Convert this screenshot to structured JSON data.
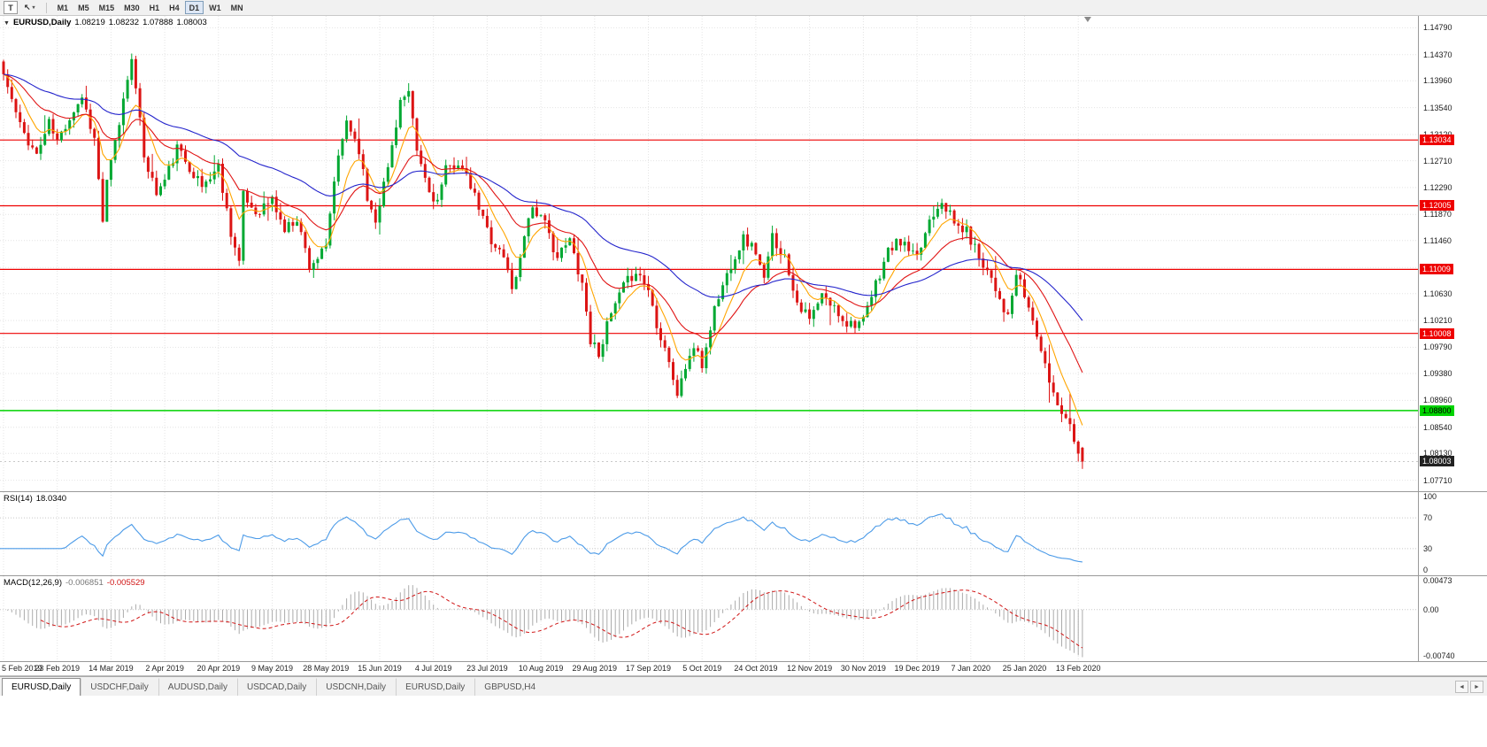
{
  "toolbar": {
    "text_tool": "T",
    "cursor_icon": "↖",
    "dropdown_caret": "▾",
    "timeframes": [
      "M1",
      "M5",
      "M15",
      "M30",
      "H1",
      "H4",
      "D1",
      "W1",
      "MN"
    ],
    "active_timeframe": "D1"
  },
  "chart_header": {
    "collapse_icon": "▼",
    "symbol": "EURUSD,Daily",
    "open": "1.08219",
    "high": "1.08232",
    "low": "1.07888",
    "close": "1.08003"
  },
  "rsi": {
    "label": "RSI(14)",
    "value": "18.0340",
    "axis_labels": [
      "100",
      "70",
      "30",
      "0"
    ],
    "levels_dashed": [
      70,
      30
    ]
  },
  "macd": {
    "label": "MACD(12,26,9)",
    "main_value": "-0.006851",
    "signal_value": "-0.005529",
    "axis_labels": [
      "0.00473",
      "0.00",
      "-0.00740"
    ]
  },
  "price_axis": {
    "ticks": [
      "1.14790",
      "1.14370",
      "1.13960",
      "1.13540",
      "1.13120",
      "1.12710",
      "1.12290",
      "1.11870",
      "1.11460",
      "1.11040",
      "1.10630",
      "1.10210",
      "1.09790",
      "1.09380",
      "1.08960",
      "1.08540",
      "1.08130",
      "1.07710"
    ]
  },
  "levels": {
    "resistance": [
      "1.13034",
      "1.12005",
      "1.11009",
      "1.10008"
    ],
    "support": "1.08800",
    "current": "1.08003"
  },
  "tabs": {
    "items": [
      "EURUSD,Daily",
      "USDCHF,Daily",
      "AUDUSD,Daily",
      "USDCAD,Daily",
      "USDCNH,Daily",
      "EURUSD,Daily",
      "GBPUSD,H4"
    ],
    "active": 0,
    "scroll_left": "◄",
    "scroll_right": "►"
  },
  "colors": {
    "candle_up": "#00A832",
    "candle_down": "#DC1414",
    "ma_fast": "#FFA500",
    "ma_mid": "#E01414",
    "ma_slow": "#2424CC",
    "rsi_line": "#4C9BE8",
    "macd_hist": "#ABABAB",
    "macd_signal": "#D01414",
    "level_red": "#EE0000",
    "level_green": "#00D300",
    "grid": "#E4E4E4"
  },
  "chart_data": {
    "type": "candlestick",
    "symbol": "EURUSD",
    "timeframe": "Daily",
    "x_labels": [
      "5 Feb 2019",
      "23 Feb 2019",
      "14 Mar 2019",
      "2 Apr 2019",
      "20 Apr 2019",
      "9 May 2019",
      "28 May 2019",
      "15 Jun 2019",
      "4 Jul 2019",
      "23 Jul 2019",
      "10 Aug 2019",
      "29 Aug 2019",
      "17 Sep 2019",
      "5 Oct 2019",
      "24 Oct 2019",
      "12 Nov 2019",
      "30 Nov 2019",
      "19 Dec 2019",
      "7 Jan 2020",
      "25 Jan 2020",
      "13 Feb 2020"
    ],
    "label_every": 13,
    "candles_count": 262,
    "price_range": [
      1.0758,
      1.1492
    ],
    "close_anchors": [
      [
        0,
        1.1406
      ],
      [
        4,
        1.1325
      ],
      [
        8,
        1.128
      ],
      [
        11,
        1.133
      ],
      [
        13,
        1.13
      ],
      [
        16,
        1.134
      ],
      [
        19,
        1.1372
      ],
      [
        22,
        1.1305
      ],
      [
        24,
        1.1177
      ],
      [
        25,
        1.1235
      ],
      [
        28,
        1.133
      ],
      [
        31,
        1.1438
      ],
      [
        32,
        1.138
      ],
      [
        34,
        1.128
      ],
      [
        37,
        1.122
      ],
      [
        39,
        1.124
      ],
      [
        42,
        1.129
      ],
      [
        45,
        1.1262
      ],
      [
        48,
        1.123
      ],
      [
        52,
        1.1262
      ],
      [
        55,
        1.116
      ],
      [
        57,
        1.1112
      ],
      [
        58,
        1.1215
      ],
      [
        61,
        1.119
      ],
      [
        65,
        1.121
      ],
      [
        68,
        1.1162
      ],
      [
        71,
        1.1182
      ],
      [
        74,
        1.1107
      ],
      [
        78,
        1.1132
      ],
      [
        80,
        1.124
      ],
      [
        83,
        1.1335
      ],
      [
        86,
        1.129
      ],
      [
        88,
        1.1212
      ],
      [
        90,
        1.1181
      ],
      [
        93,
        1.126
      ],
      [
        96,
        1.1365
      ],
      [
        98,
        1.1373
      ],
      [
        100,
        1.1285
      ],
      [
        103,
        1.1222
      ],
      [
        105,
        1.1207
      ],
      [
        107,
        1.1255
      ],
      [
        110,
        1.127
      ],
      [
        113,
        1.123
      ],
      [
        116,
        1.118
      ],
      [
        118,
        1.1148
      ],
      [
        121,
        1.112
      ],
      [
        123,
        1.1075
      ],
      [
        124,
        1.1085
      ],
      [
        126,
        1.116
      ],
      [
        128,
        1.12
      ],
      [
        131,
        1.117
      ],
      [
        134,
        1.112
      ],
      [
        137,
        1.1146
      ],
      [
        140,
        1.108
      ],
      [
        142,
        1.099
      ],
      [
        144,
        1.0972
      ],
      [
        147,
        1.103
      ],
      [
        150,
        1.1073
      ],
      [
        153,
        1.11
      ],
      [
        156,
        1.107
      ],
      [
        158,
        1.1017
      ],
      [
        161,
        1.096
      ],
      [
        163,
        1.0899
      ],
      [
        164,
        1.0932
      ],
      [
        167,
        1.098
      ],
      [
        169,
        1.095
      ],
      [
        172,
        1.104
      ],
      [
        176,
        1.111
      ],
      [
        179,
        1.115
      ],
      [
        182,
        1.113
      ],
      [
        184,
        1.1082
      ],
      [
        186,
        1.1152
      ],
      [
        189,
        1.112
      ],
      [
        192,
        1.1052
      ],
      [
        195,
        1.1021
      ],
      [
        198,
        1.1059
      ],
      [
        201,
        1.104
      ],
      [
        204,
        1.1018
      ],
      [
        208,
        1.1018
      ],
      [
        211,
        1.1077
      ],
      [
        214,
        1.113
      ],
      [
        217,
        1.1145
      ],
      [
        221,
        1.1115
      ],
      [
        224,
        1.118
      ],
      [
        227,
        1.1212
      ],
      [
        230,
        1.1172
      ],
      [
        233,
        1.116
      ],
      [
        236,
        1.1122
      ],
      [
        239,
        1.109
      ],
      [
        243,
        1.1024
      ],
      [
        245,
        1.1093
      ],
      [
        247,
        1.106
      ],
      [
        250,
        1.1
      ],
      [
        252,
        1.0946
      ],
      [
        255,
        1.089
      ],
      [
        257,
        1.0873
      ],
      [
        259,
        1.084
      ],
      [
        261,
        1.08
      ]
    ],
    "last_candle": [
      1.08219,
      1.08232,
      1.07888,
      1.08003
    ],
    "noise": 0.0009,
    "wick": 0.0013,
    "seed": 11,
    "ma_periods": [
      8,
      21,
      55
    ],
    "rsi_period": 14,
    "macd_params": [
      12,
      26,
      9
    ],
    "macd_scale": [
      -0.0074,
      0.00473
    ],
    "hlines_red": [
      1.13034,
      1.12005,
      1.11009,
      1.10008
    ],
    "hline_green": 1.088,
    "current_price": 1.08003
  }
}
